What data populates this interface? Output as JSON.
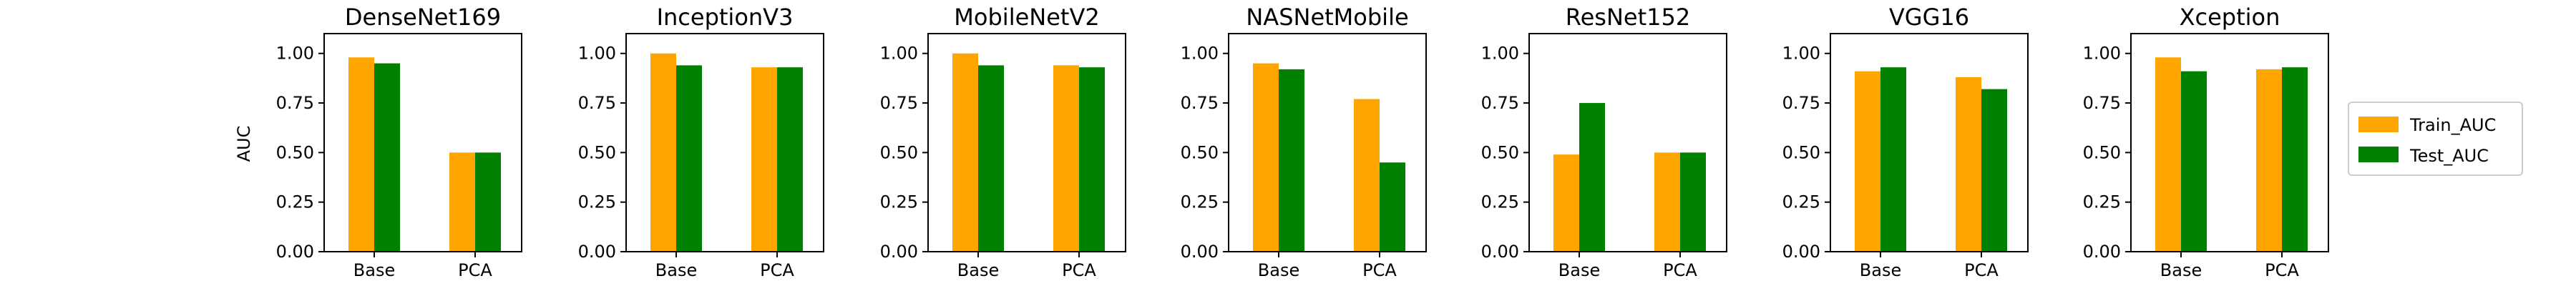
{
  "chart_data": {
    "type": "bar",
    "ylabel": "AUC",
    "ylim": [
      0,
      1.1
    ],
    "yticks": [
      "0.00",
      "0.25",
      "0.50",
      "0.75",
      "1.00"
    ],
    "ytick_values": [
      0,
      0.25,
      0.5,
      0.75,
      1.0
    ],
    "categories": [
      "Base",
      "PCA"
    ],
    "legend": {
      "placement": "right",
      "entries": [
        {
          "name": "Train_AUC",
          "color": "#ffa500"
        },
        {
          "name": "Test_AUC",
          "color": "#008000"
        }
      ]
    },
    "panels": [
      {
        "title": "DenseNet169",
        "series": [
          {
            "name": "Train_AUC",
            "values": [
              0.98,
              0.5
            ]
          },
          {
            "name": "Test_AUC",
            "values": [
              0.95,
              0.5
            ]
          }
        ]
      },
      {
        "title": "InceptionV3",
        "series": [
          {
            "name": "Train_AUC",
            "values": [
              1.0,
              0.93
            ]
          },
          {
            "name": "Test_AUC",
            "values": [
              0.94,
              0.93
            ]
          }
        ]
      },
      {
        "title": "MobileNetV2",
        "series": [
          {
            "name": "Train_AUC",
            "values": [
              1.0,
              0.94
            ]
          },
          {
            "name": "Test_AUC",
            "values": [
              0.94,
              0.93
            ]
          }
        ]
      },
      {
        "title": "NASNetMobile",
        "series": [
          {
            "name": "Train_AUC",
            "values": [
              0.95,
              0.77
            ]
          },
          {
            "name": "Test_AUC",
            "values": [
              0.92,
              0.45
            ]
          }
        ]
      },
      {
        "title": "ResNet152",
        "series": [
          {
            "name": "Train_AUC",
            "values": [
              0.49,
              0.5
            ]
          },
          {
            "name": "Test_AUC",
            "values": [
              0.75,
              0.5
            ]
          }
        ]
      },
      {
        "title": "VGG16",
        "series": [
          {
            "name": "Train_AUC",
            "values": [
              0.91,
              0.88
            ]
          },
          {
            "name": "Test_AUC",
            "values": [
              0.93,
              0.82
            ]
          }
        ]
      },
      {
        "title": "Xception",
        "series": [
          {
            "name": "Train_AUC",
            "values": [
              0.98,
              0.92
            ]
          },
          {
            "name": "Test_AUC",
            "values": [
              0.91,
              0.93
            ]
          }
        ]
      }
    ]
  }
}
